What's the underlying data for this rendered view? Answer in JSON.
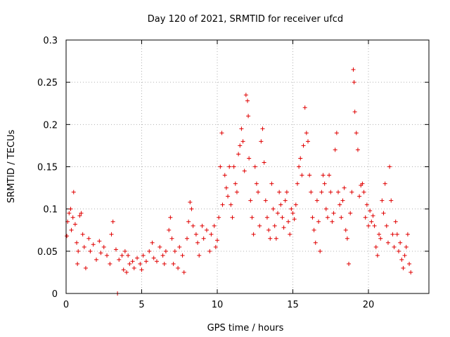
{
  "chart_data": {
    "type": "scatter",
    "title": "Day 120 of 2021, SRMTID for receiver ufcd",
    "xlabel": "GPS time / hours",
    "ylabel": "SRMTID / TECUs",
    "xlim": [
      0,
      24
    ],
    "ylim": [
      0,
      0.3
    ],
    "xticks": [
      0,
      5,
      10,
      15,
      20
    ],
    "xtick_labels": [
      "0",
      "5",
      "10",
      "15",
      "20"
    ],
    "yticks": [
      0,
      0.05,
      0.1,
      0.15,
      0.2,
      0.25,
      0.3
    ],
    "ytick_labels": [
      "0",
      "0.05",
      "0.1",
      "0.15",
      "0.2",
      "0.25",
      "0.3"
    ],
    "grid": true,
    "marker": "plus",
    "color": "#e00000",
    "series": [
      {
        "name": "SRMTID",
        "points": [
          [
            0.05,
            0.068
          ],
          [
            0.1,
            0.085
          ],
          [
            0.2,
            0.095
          ],
          [
            0.3,
            0.1
          ],
          [
            0.35,
            0.075
          ],
          [
            0.45,
            0.09
          ],
          [
            0.5,
            0.12
          ],
          [
            0.6,
            0.082
          ],
          [
            0.7,
            0.06
          ],
          [
            0.75,
            0.035
          ],
          [
            0.8,
            0.05
          ],
          [
            0.9,
            0.092
          ],
          [
            1.0,
            0.095
          ],
          [
            1.1,
            0.07
          ],
          [
            1.2,
            0.055
          ],
          [
            1.3,
            0.03
          ],
          [
            1.5,
            0.065
          ],
          [
            1.6,
            0.05
          ],
          [
            1.8,
            0.058
          ],
          [
            2.0,
            0.04
          ],
          [
            2.2,
            0.062
          ],
          [
            2.3,
            0.048
          ],
          [
            2.5,
            0.055
          ],
          [
            2.7,
            0.045
          ],
          [
            2.9,
            0.035
          ],
          [
            3.0,
            0.07
          ],
          [
            3.1,
            0.085
          ],
          [
            3.3,
            0.052
          ],
          [
            3.4,
            0.0
          ],
          [
            3.5,
            0.04
          ],
          [
            3.7,
            0.045
          ],
          [
            3.8,
            0.028
          ],
          [
            3.9,
            0.05
          ],
          [
            4.0,
            0.025
          ],
          [
            4.1,
            0.045
          ],
          [
            4.2,
            0.035
          ],
          [
            4.4,
            0.038
          ],
          [
            4.5,
            0.03
          ],
          [
            4.7,
            0.042
          ],
          [
            4.9,
            0.035
          ],
          [
            5.0,
            0.028
          ],
          [
            5.1,
            0.045
          ],
          [
            5.3,
            0.038
          ],
          [
            5.5,
            0.05
          ],
          [
            5.7,
            0.06
          ],
          [
            5.8,
            0.042
          ],
          [
            6.0,
            0.038
          ],
          [
            6.2,
            0.055
          ],
          [
            6.4,
            0.045
          ],
          [
            6.5,
            0.035
          ],
          [
            6.6,
            0.05
          ],
          [
            6.8,
            0.075
          ],
          [
            6.9,
            0.09
          ],
          [
            7.0,
            0.065
          ],
          [
            7.1,
            0.035
          ],
          [
            7.2,
            0.05
          ],
          [
            7.4,
            0.03
          ],
          [
            7.5,
            0.055
          ],
          [
            7.7,
            0.045
          ],
          [
            7.8,
            0.025
          ],
          [
            8.0,
            0.065
          ],
          [
            8.1,
            0.085
          ],
          [
            8.2,
            0.108
          ],
          [
            8.3,
            0.1
          ],
          [
            8.4,
            0.08
          ],
          [
            8.6,
            0.07
          ],
          [
            8.7,
            0.06
          ],
          [
            8.8,
            0.045
          ],
          [
            9.0,
            0.08
          ],
          [
            9.1,
            0.065
          ],
          [
            9.3,
            0.075
          ],
          [
            9.5,
            0.05
          ],
          [
            9.6,
            0.07
          ],
          [
            9.8,
            0.08
          ],
          [
            9.9,
            0.055
          ],
          [
            10.0,
            0.063
          ],
          [
            10.1,
            0.09
          ],
          [
            10.2,
            0.15
          ],
          [
            10.3,
            0.19
          ],
          [
            10.35,
            0.105
          ],
          [
            10.5,
            0.14
          ],
          [
            10.6,
            0.125
          ],
          [
            10.7,
            0.115
          ],
          [
            10.8,
            0.15
          ],
          [
            10.9,
            0.105
          ],
          [
            11.0,
            0.09
          ],
          [
            11.1,
            0.15
          ],
          [
            11.2,
            0.13
          ],
          [
            11.3,
            0.12
          ],
          [
            11.4,
            0.165
          ],
          [
            11.5,
            0.175
          ],
          [
            11.6,
            0.195
          ],
          [
            11.7,
            0.18
          ],
          [
            11.8,
            0.145
          ],
          [
            11.9,
            0.235
          ],
          [
            12.0,
            0.228
          ],
          [
            12.05,
            0.21
          ],
          [
            12.1,
            0.16
          ],
          [
            12.2,
            0.11
          ],
          [
            12.3,
            0.09
          ],
          [
            12.4,
            0.07
          ],
          [
            12.5,
            0.15
          ],
          [
            12.6,
            0.13
          ],
          [
            12.7,
            0.12
          ],
          [
            12.8,
            0.08
          ],
          [
            12.9,
            0.18
          ],
          [
            13.0,
            0.195
          ],
          [
            13.1,
            0.155
          ],
          [
            13.2,
            0.11
          ],
          [
            13.3,
            0.09
          ],
          [
            13.4,
            0.075
          ],
          [
            13.5,
            0.065
          ],
          [
            13.6,
            0.13
          ],
          [
            13.7,
            0.1
          ],
          [
            13.8,
            0.08
          ],
          [
            13.9,
            0.065
          ],
          [
            14.0,
            0.095
          ],
          [
            14.1,
            0.12
          ],
          [
            14.2,
            0.105
          ],
          [
            14.3,
            0.09
          ],
          [
            14.4,
            0.078
          ],
          [
            14.5,
            0.11
          ],
          [
            14.6,
            0.12
          ],
          [
            14.7,
            0.085
          ],
          [
            14.8,
            0.07
          ],
          [
            14.9,
            0.1
          ],
          [
            15.0,
            0.095
          ],
          [
            15.1,
            0.088
          ],
          [
            15.2,
            0.105
          ],
          [
            15.3,
            0.13
          ],
          [
            15.4,
            0.15
          ],
          [
            15.5,
            0.16
          ],
          [
            15.6,
            0.14
          ],
          [
            15.7,
            0.175
          ],
          [
            15.8,
            0.22
          ],
          [
            15.9,
            0.19
          ],
          [
            16.0,
            0.18
          ],
          [
            16.1,
            0.14
          ],
          [
            16.2,
            0.12
          ],
          [
            16.3,
            0.09
          ],
          [
            16.4,
            0.075
          ],
          [
            16.5,
            0.06
          ],
          [
            16.6,
            0.11
          ],
          [
            16.7,
            0.085
          ],
          [
            16.8,
            0.05
          ],
          [
            16.9,
            0.12
          ],
          [
            17.0,
            0.14
          ],
          [
            17.1,
            0.13
          ],
          [
            17.2,
            0.1
          ],
          [
            17.3,
            0.09
          ],
          [
            17.4,
            0.14
          ],
          [
            17.5,
            0.12
          ],
          [
            17.6,
            0.085
          ],
          [
            17.7,
            0.095
          ],
          [
            17.8,
            0.17
          ],
          [
            17.9,
            0.19
          ],
          [
            18.0,
            0.12
          ],
          [
            18.1,
            0.105
          ],
          [
            18.2,
            0.09
          ],
          [
            18.3,
            0.11
          ],
          [
            18.4,
            0.125
          ],
          [
            18.5,
            0.075
          ],
          [
            18.6,
            0.065
          ],
          [
            18.7,
            0.035
          ],
          [
            18.8,
            0.095
          ],
          [
            18.9,
            0.12
          ],
          [
            19.0,
            0.265
          ],
          [
            19.05,
            0.25
          ],
          [
            19.1,
            0.215
          ],
          [
            19.2,
            0.19
          ],
          [
            19.3,
            0.17
          ],
          [
            19.4,
            0.115
          ],
          [
            19.5,
            0.128
          ],
          [
            19.6,
            0.13
          ],
          [
            19.7,
            0.12
          ],
          [
            19.8,
            0.09
          ],
          [
            19.9,
            0.105
          ],
          [
            20.0,
            0.08
          ],
          [
            20.1,
            0.098
          ],
          [
            20.2,
            0.085
          ],
          [
            20.3,
            0.092
          ],
          [
            20.4,
            0.08
          ],
          [
            20.5,
            0.055
          ],
          [
            20.6,
            0.045
          ],
          [
            20.7,
            0.07
          ],
          [
            20.8,
            0.065
          ],
          [
            20.9,
            0.11
          ],
          [
            21.0,
            0.095
          ],
          [
            21.1,
            0.13
          ],
          [
            21.2,
            0.08
          ],
          [
            21.3,
            0.06
          ],
          [
            21.4,
            0.15
          ],
          [
            21.5,
            0.11
          ],
          [
            21.6,
            0.07
          ],
          [
            21.7,
            0.055
          ],
          [
            21.8,
            0.085
          ],
          [
            21.9,
            0.07
          ],
          [
            22.0,
            0.05
          ],
          [
            22.1,
            0.06
          ],
          [
            22.2,
            0.04
          ],
          [
            22.3,
            0.03
          ],
          [
            22.4,
            0.045
          ],
          [
            22.5,
            0.055
          ],
          [
            22.6,
            0.07
          ],
          [
            22.7,
            0.035
          ],
          [
            22.8,
            0.025
          ]
        ]
      }
    ]
  }
}
